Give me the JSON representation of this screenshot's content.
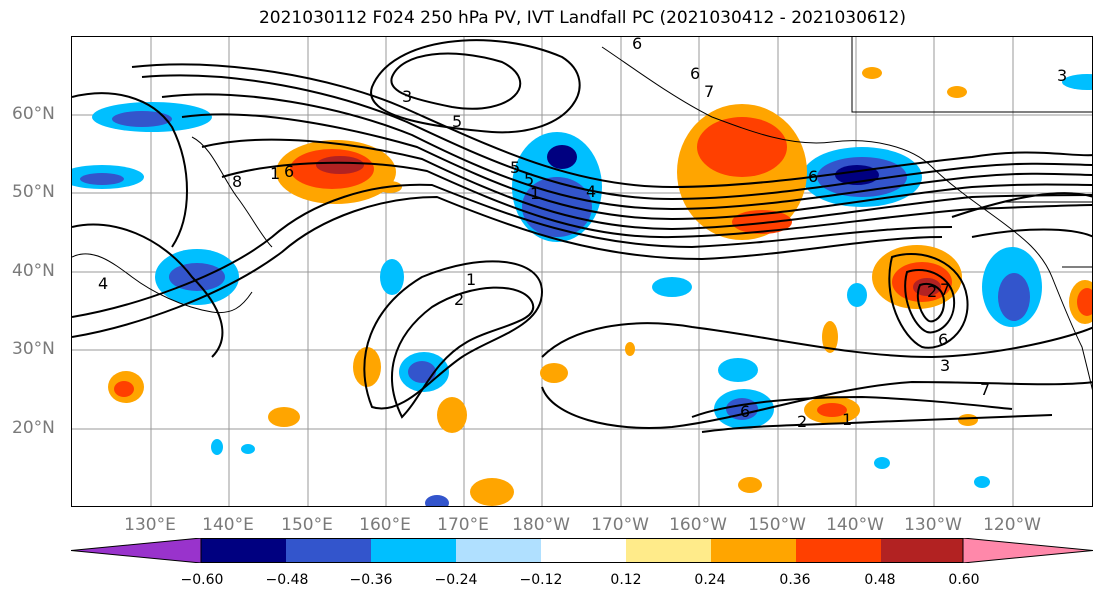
{
  "title": "2021030112 F024 250 hPa PV, IVT Landfall PC (2021030412 - 2021030612)",
  "lat_labels": [
    "60°N",
    "50°N",
    "40°N",
    "30°N",
    "20°N"
  ],
  "lon_labels": [
    "130°E",
    "140°E",
    "150°E",
    "160°E",
    "170°E",
    "180°W",
    "170°W",
    "160°W",
    "150°W",
    "140°W",
    "130°W",
    "120°W"
  ],
  "colorbar": {
    "ticks": [
      "−0.60",
      "−0.48",
      "−0.36",
      "−0.24",
      "−0.12",
      "0.12",
      "0.24",
      "0.36",
      "0.48",
      "0.60"
    ],
    "colors": [
      "#9933cc",
      "#000080",
      "#3355cc",
      "#00bfff",
      "#b0e0ff",
      "#ffffff",
      "#ffeb8a",
      "#ffa500",
      "#ff4000",
      "#b22222",
      "#ff88aa"
    ]
  },
  "contour_labels": [
    "6",
    "5",
    "3",
    "3",
    "7",
    "6",
    "6",
    "5",
    "1",
    "2",
    "4",
    "7",
    "6",
    "8",
    "1",
    "2",
    "1",
    "2",
    "6",
    "7",
    "3",
    "6",
    "1",
    "4",
    "5"
  ],
  "palette": {
    "neg_strong": "#000080",
    "neg_mid": "#3355cc",
    "neg_light": "#00bfff",
    "neg_pale": "#b0e0ff",
    "pos_pale": "#ffeb8a",
    "pos_mid": "#ffa500",
    "pos_strong": "#ff4000",
    "pos_dark": "#b22222"
  }
}
